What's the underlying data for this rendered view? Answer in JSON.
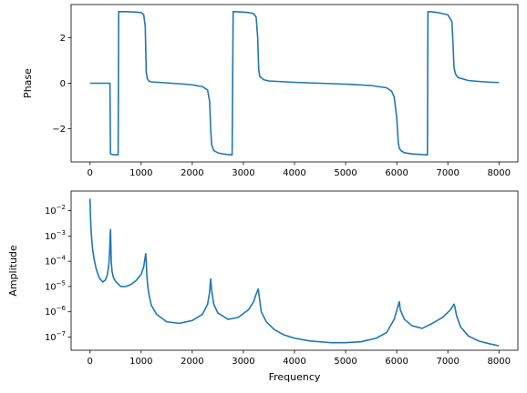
{
  "chart_data": [
    {
      "type": "line",
      "title": "",
      "xlabel": "",
      "ylabel": "Phase",
      "xlim": [
        -370,
        8370
      ],
      "ylim": [
        -3.45,
        3.45
      ],
      "xticks": [
        0,
        1000,
        2000,
        3000,
        4000,
        5000,
        6000,
        7000,
        8000
      ],
      "xtick_labels": [
        "0",
        "1000",
        "2000",
        "3000",
        "4000",
        "5000",
        "6000",
        "7000",
        "8000"
      ],
      "yticks": [
        -2,
        0,
        2
      ],
      "ytick_labels": [
        "−2",
        "0",
        "2"
      ],
      "grid": false,
      "series": [
        {
          "color": "#1f77b4",
          "x": [
            0,
            50,
            100,
            150,
            200,
            250,
            300,
            350,
            390,
            400,
            450,
            500,
            530,
            550,
            560,
            600,
            700,
            800,
            900,
            1000,
            1050,
            1080,
            1100,
            1120,
            1150,
            1200,
            1400,
            1600,
            1800,
            2000,
            2200,
            2300,
            2340,
            2360,
            2380,
            2420,
            2500,
            2600,
            2700,
            2780,
            2800,
            2810,
            2900,
            3000,
            3100,
            3200,
            3250,
            3280,
            3300,
            3320,
            3400,
            3500,
            4000,
            4500,
            5000,
            5500,
            5800,
            5900,
            5950,
            6000,
            6030,
            6050,
            6080,
            6150,
            6300,
            6500,
            6600,
            6610,
            6700,
            6800,
            6900,
            7000,
            7080,
            7100,
            7120,
            7150,
            7200,
            7400,
            7600,
            7800,
            8000
          ],
          "y": [
            0,
            0,
            0,
            0,
            0,
            0,
            0,
            0,
            0,
            -3.1,
            -3.13,
            -3.14,
            -3.14,
            -3.14,
            3.14,
            3.14,
            3.14,
            3.13,
            3.12,
            3.1,
            3.0,
            2.5,
            0.5,
            0.2,
            0.1,
            0.06,
            0.03,
            0.0,
            -0.03,
            -0.07,
            -0.15,
            -0.3,
            -0.8,
            -2.0,
            -2.7,
            -2.95,
            -3.05,
            -3.1,
            -3.13,
            -3.14,
            3.14,
            3.14,
            3.13,
            3.12,
            3.1,
            3.05,
            2.9,
            2.0,
            0.6,
            0.3,
            0.15,
            0.1,
            0.04,
            0.0,
            -0.04,
            -0.1,
            -0.2,
            -0.35,
            -0.6,
            -1.5,
            -2.6,
            -2.85,
            -2.95,
            -3.05,
            -3.1,
            -3.13,
            -3.14,
            3.14,
            3.13,
            3.1,
            3.05,
            3.0,
            2.7,
            1.8,
            0.7,
            0.4,
            0.25,
            0.12,
            0.08,
            0.05,
            0.03
          ]
        }
      ]
    },
    {
      "type": "line",
      "title": "",
      "xlabel": "Frequency",
      "ylabel": "Amplitude",
      "xlim": [
        -370,
        8370
      ],
      "yscale": "log",
      "ylim": [
        3e-08,
        0.06
      ],
      "xticks": [
        0,
        1000,
        2000,
        3000,
        4000,
        5000,
        6000,
        7000,
        8000
      ],
      "xtick_labels": [
        "0",
        "1000",
        "2000",
        "3000",
        "4000",
        "5000",
        "6000",
        "7000",
        "8000"
      ],
      "yticks": [
        1e-07,
        1e-06,
        1e-05,
        0.0001,
        0.001,
        0.01
      ],
      "ytick_labels_base": "10",
      "ytick_labels_exp": [
        "−7",
        "−6",
        "−5",
        "−4",
        "−3",
        "−2"
      ],
      "grid": false,
      "series": [
        {
          "color": "#1f77b4",
          "x": [
            0,
            10,
            25,
            50,
            80,
            120,
            180,
            250,
            300,
            340,
            370,
            385,
            395,
            400,
            405,
            415,
            430,
            460,
            500,
            600,
            700,
            800,
            900,
            1000,
            1050,
            1080,
            1090,
            1100,
            1110,
            1130,
            1160,
            1200,
            1300,
            1500,
            1750,
            2000,
            2200,
            2300,
            2340,
            2360,
            2380,
            2420,
            2500,
            2700,
            2900,
            3100,
            3200,
            3250,
            3290,
            3310,
            3350,
            3450,
            3600,
            3800,
            4000,
            4300,
            4700,
            5000,
            5300,
            5600,
            5800,
            5950,
            6030,
            6050,
            6070,
            6150,
            6300,
            6500,
            6700,
            6900,
            7050,
            7120,
            7140,
            7170,
            7250,
            7400,
            7600,
            7800,
            8000
          ],
          "y": [
            0.03,
            0.005,
            0.0012,
            0.0003,
            0.00012,
            5e-05,
            2.2e-05,
            1.5e-05,
            1.8e-05,
            3e-05,
            8e-05,
            0.0003,
            0.0012,
            0.0018,
            0.0008,
            0.0001,
            4e-05,
            2.2e-05,
            1.6e-05,
            1e-05,
            1e-05,
            1.2e-05,
            1.7e-05,
            3e-05,
            6e-05,
            0.00015,
            0.0002,
            0.0001,
            3e-05,
            1e-05,
            4e-06,
            1.8e-06,
            8e-07,
            4e-07,
            3.5e-07,
            4.5e-07,
            8e-07,
            2e-06,
            6e-06,
            2e-05,
            7e-06,
            2e-06,
            9e-07,
            5e-07,
            6e-07,
            1.2e-06,
            2.5e-06,
            5e-06,
            8e-06,
            4e-06,
            1e-06,
            4e-07,
            2e-07,
            1.2e-07,
            9e-08,
            7e-08,
            6e-08,
            6e-08,
            6.5e-08,
            9e-08,
            1.5e-07,
            5e-07,
            1.8e-06,
            2.5e-06,
            1.2e-06,
            5e-07,
            2.8e-07,
            2.2e-07,
            3.5e-07,
            6e-07,
            1.2e-06,
            2e-06,
            1.5e-06,
            7e-07,
            2.5e-07,
            1.1e-07,
            7e-08,
            5.5e-08,
            4.5e-08
          ]
        }
      ]
    }
  ]
}
